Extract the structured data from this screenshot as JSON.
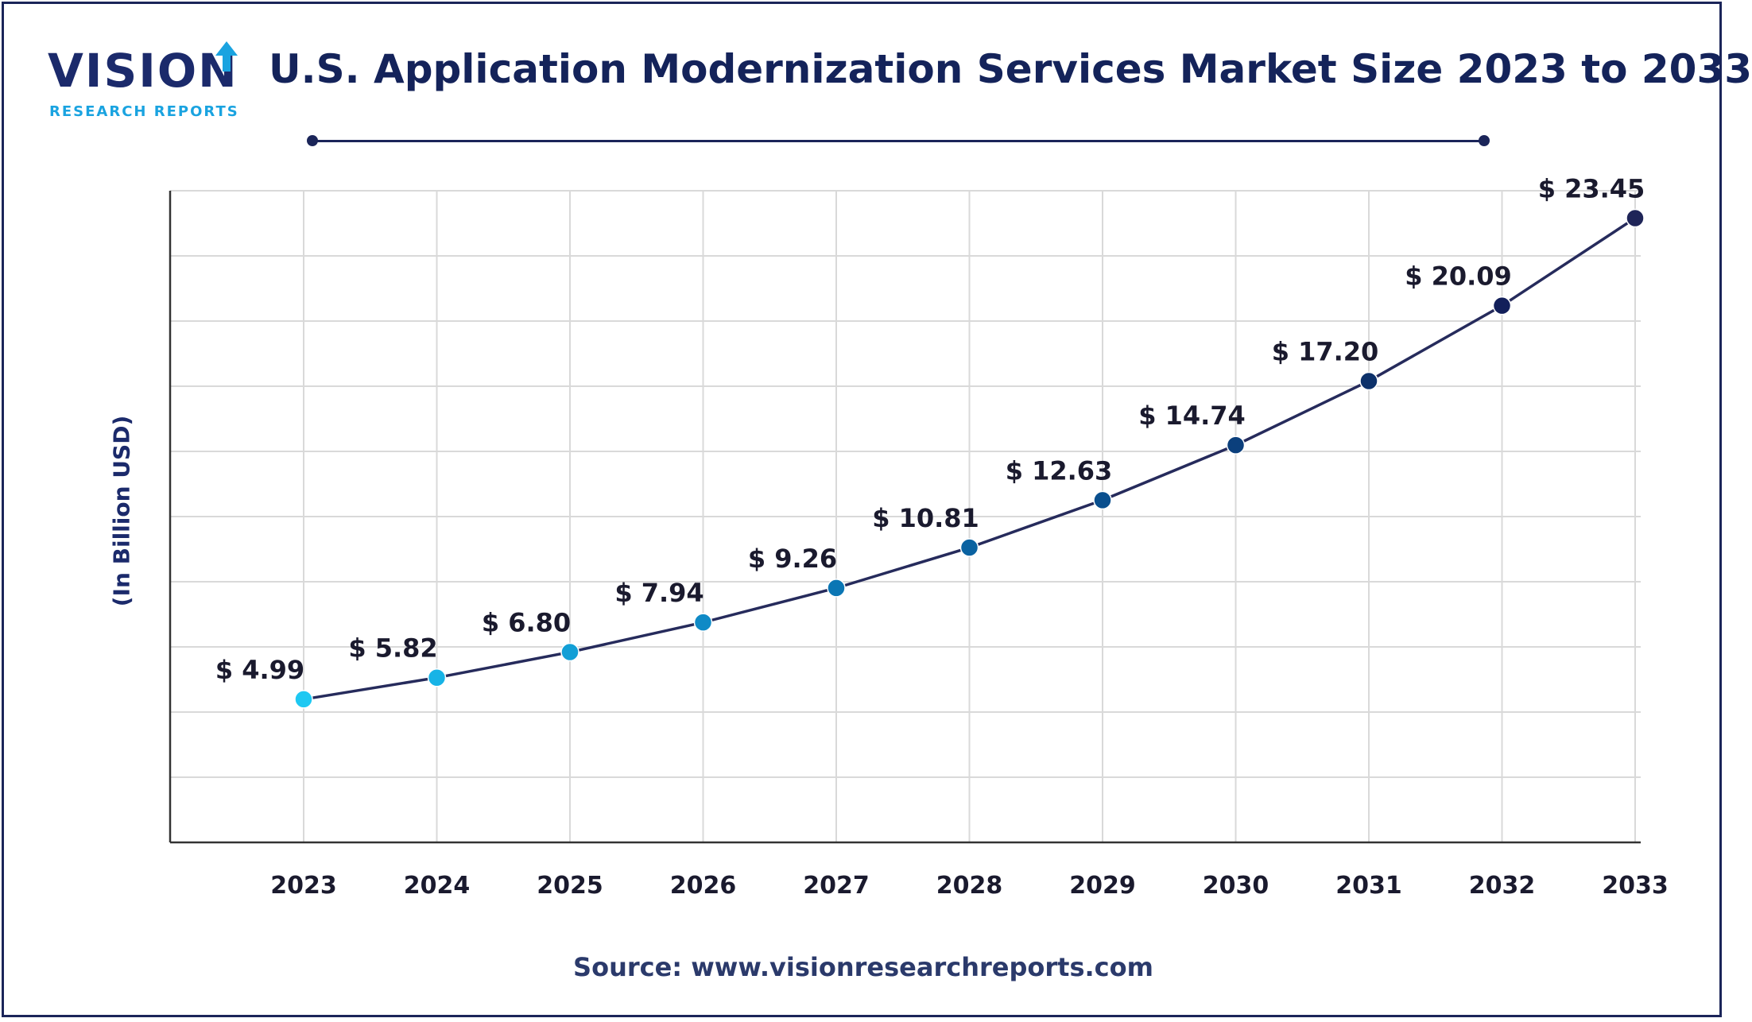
{
  "brand": {
    "name": "VISION",
    "tagline": "RESEARCH REPORTS"
  },
  "title": "U.S. Application Modernization Services Market Size 2023 to 2033",
  "source": "Source: www.visionresearchreports.com",
  "colors": {
    "navy": "#1b2559",
    "line": "#262b5c",
    "grid": "#d9d9d9",
    "point_gradient": [
      "#1ec8f2",
      "#17b3e6",
      "#129fd6",
      "#0f8ac6",
      "#0b76b4",
      "#0a62a1",
      "#0a4f8e",
      "#0b3f7c",
      "#0d316a",
      "#121f5a",
      "#1f2558"
    ]
  },
  "chart_data": {
    "type": "line",
    "title": "U.S. Application Modernization Services Market Size 2023 to 2033",
    "xlabel": "",
    "ylabel": "(In Billion USD)",
    "categories": [
      "2023",
      "2024",
      "2025",
      "2026",
      "2027",
      "2028",
      "2029",
      "2030",
      "2031",
      "2032",
      "2033"
    ],
    "values": [
      4.99,
      5.82,
      6.8,
      7.94,
      9.26,
      10.81,
      12.63,
      14.74,
      17.2,
      20.09,
      23.45
    ],
    "data_labels": [
      "$ 4.99",
      "$ 5.82",
      "$ 6.80",
      "$ 7.94",
      "$ 9.26",
      "$ 10.81",
      "$ 12.63",
      "$ 14.74",
      "$ 17.20",
      "$ 20.09",
      "$ 23.45"
    ],
    "ylim": [
      -0.5,
      24.5
    ],
    "grid": true,
    "legend": "none"
  }
}
